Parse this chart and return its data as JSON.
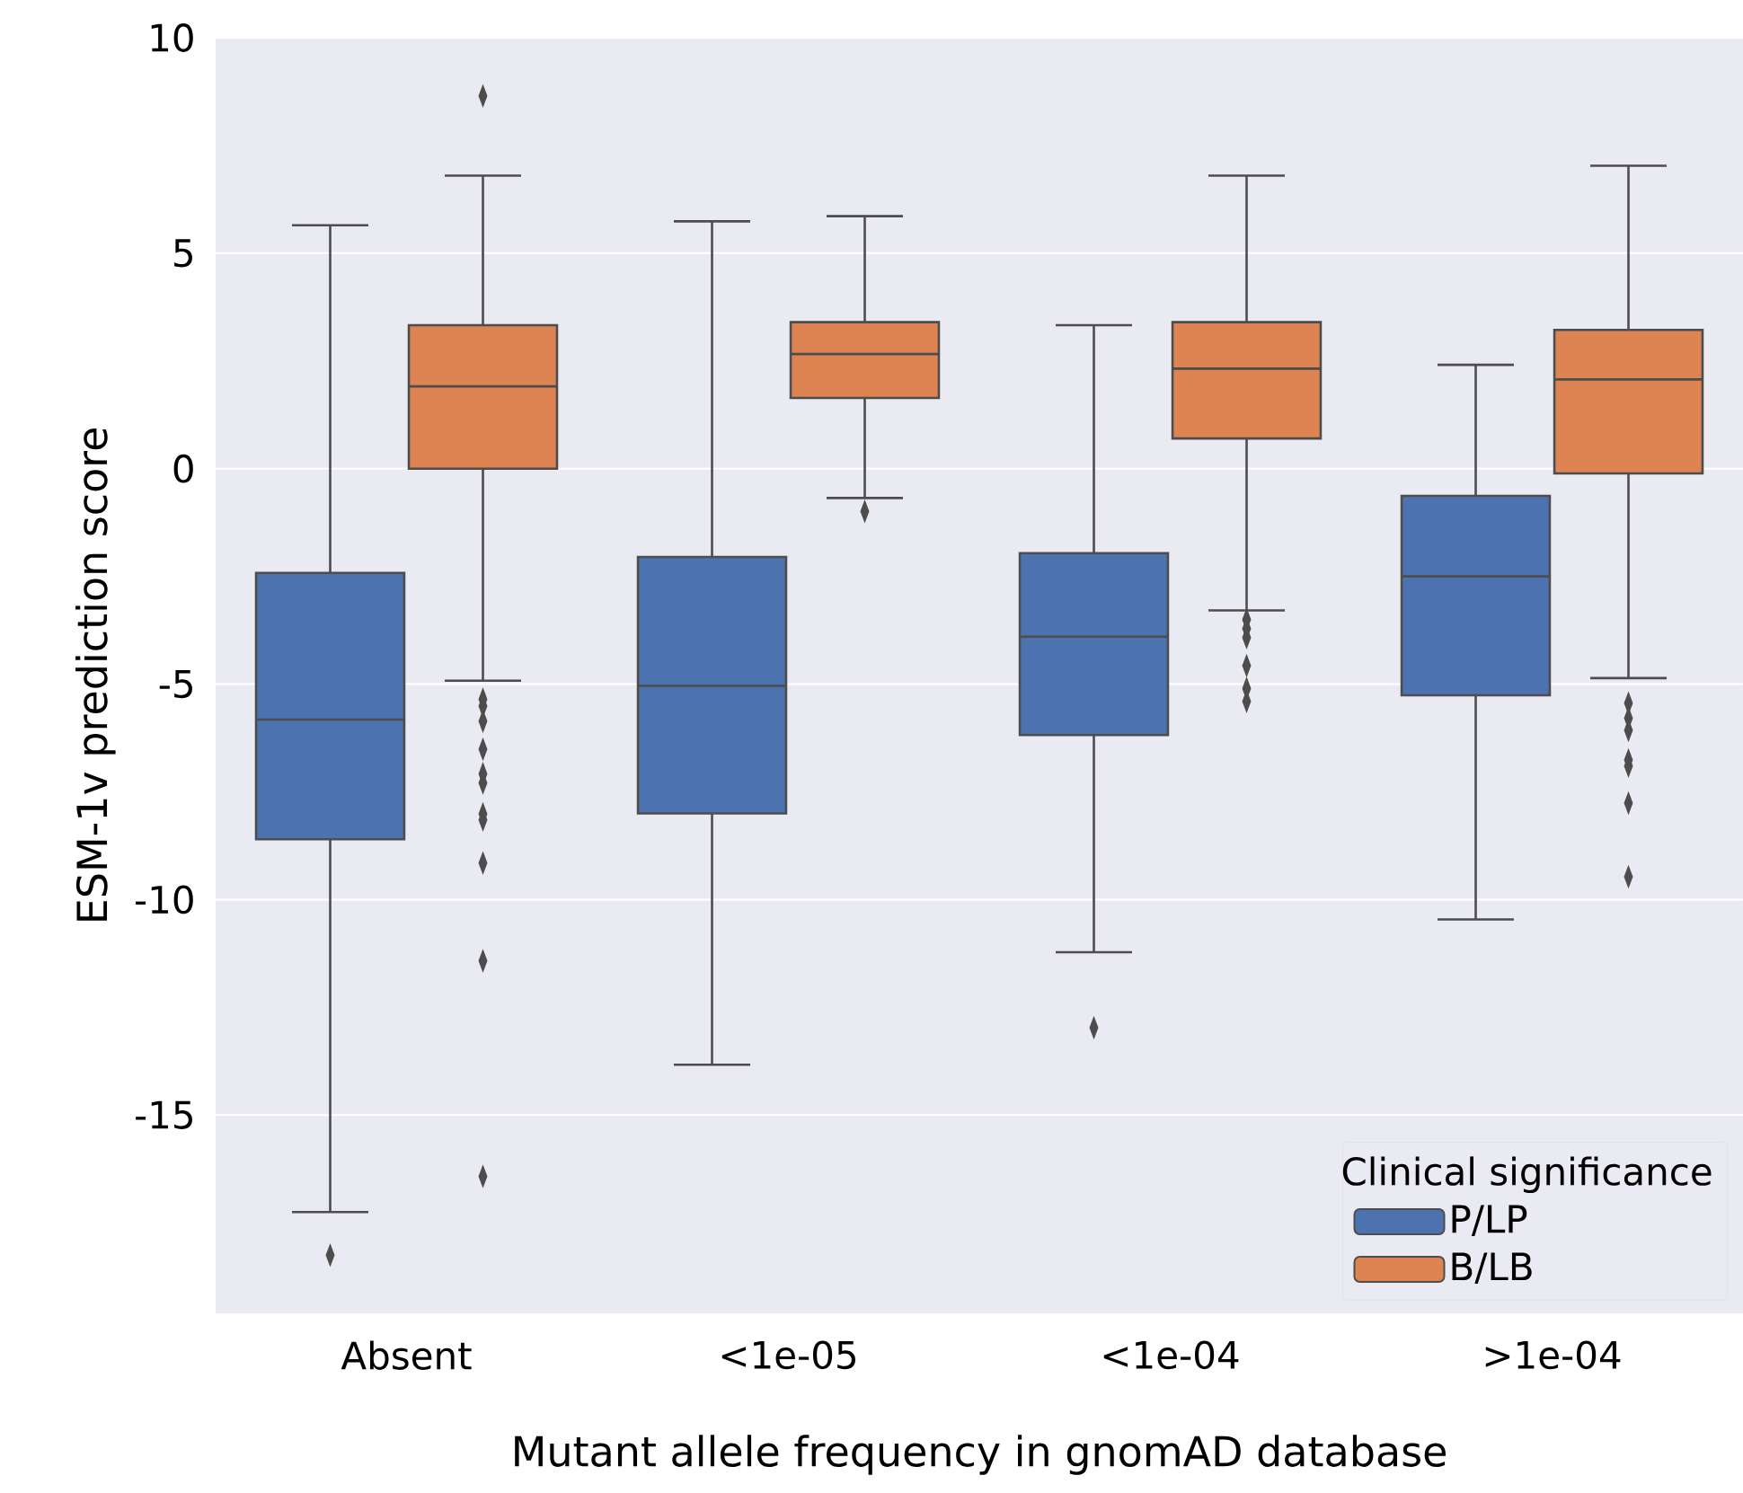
{
  "chart_data": {
    "type": "box",
    "xlabel": "Mutant allele frequency in gnomAD database",
    "ylabel": "ESM-1v prediction score",
    "categories": [
      "Absent",
      "<1e-05",
      "<1e-04",
      ">1e-04"
    ],
    "ylim": [
      -19.6,
      10
    ],
    "yticks": [
      -15,
      -10,
      -5,
      0,
      5,
      10
    ],
    "grid": "y",
    "legend": "bottom right",
    "legend_title": "Clinical significance",
    "marker": "diamond",
    "series": [
      {
        "name": "P/LP",
        "color": "#4c72b0",
        "boxes": [
          {
            "low": -17.25,
            "q1": -8.6,
            "median": -5.82,
            "q3": -2.42,
            "high": 5.65,
            "outliers": [
              -18.25
            ]
          },
          {
            "low": -13.83,
            "q1": -8.0,
            "median": -5.04,
            "q3": -2.05,
            "high": 5.74
          },
          {
            "low": -11.22,
            "q1": -6.18,
            "median": -3.9,
            "q3": -1.96,
            "high": 3.33,
            "outliers": [
              -12.97
            ]
          },
          {
            "low": -10.46,
            "q1": -5.26,
            "median": -2.5,
            "q3": -0.63,
            "high": 2.41
          }
        ]
      },
      {
        "name": "B/LB",
        "color": "#dd8452",
        "boxes": [
          {
            "low": -4.92,
            "q1": 0,
            "median": 1.91,
            "q3": 3.33,
            "high": 6.8,
            "outliers": [
              8.65,
              -5.35,
              -5.51,
              -5.86,
              -6.51,
              -7.08,
              -7.29,
              -8.01,
              -8.15,
              -9.15,
              -11.42,
              -16.42
            ]
          },
          {
            "low": -0.68,
            "q1": 1.64,
            "median": 2.66,
            "q3": 3.4,
            "high": 5.86,
            "outliers": [
              -0.99
            ]
          },
          {
            "low": -3.29,
            "q1": 0.7,
            "median": 2.32,
            "q3": 3.4,
            "high": 6.8,
            "outliers": [
              -3.5,
              -3.71,
              -3.92,
              -4.57,
              -5.1,
              -5.4
            ]
          },
          {
            "low": -4.86,
            "q1": -0.11,
            "median": 2.07,
            "q3": 3.22,
            "high": 7.03,
            "outliers": [
              -5.44,
              -5.79,
              -6.07,
              -6.76,
              -6.9,
              -7.76,
              -9.47
            ]
          }
        ]
      }
    ]
  }
}
